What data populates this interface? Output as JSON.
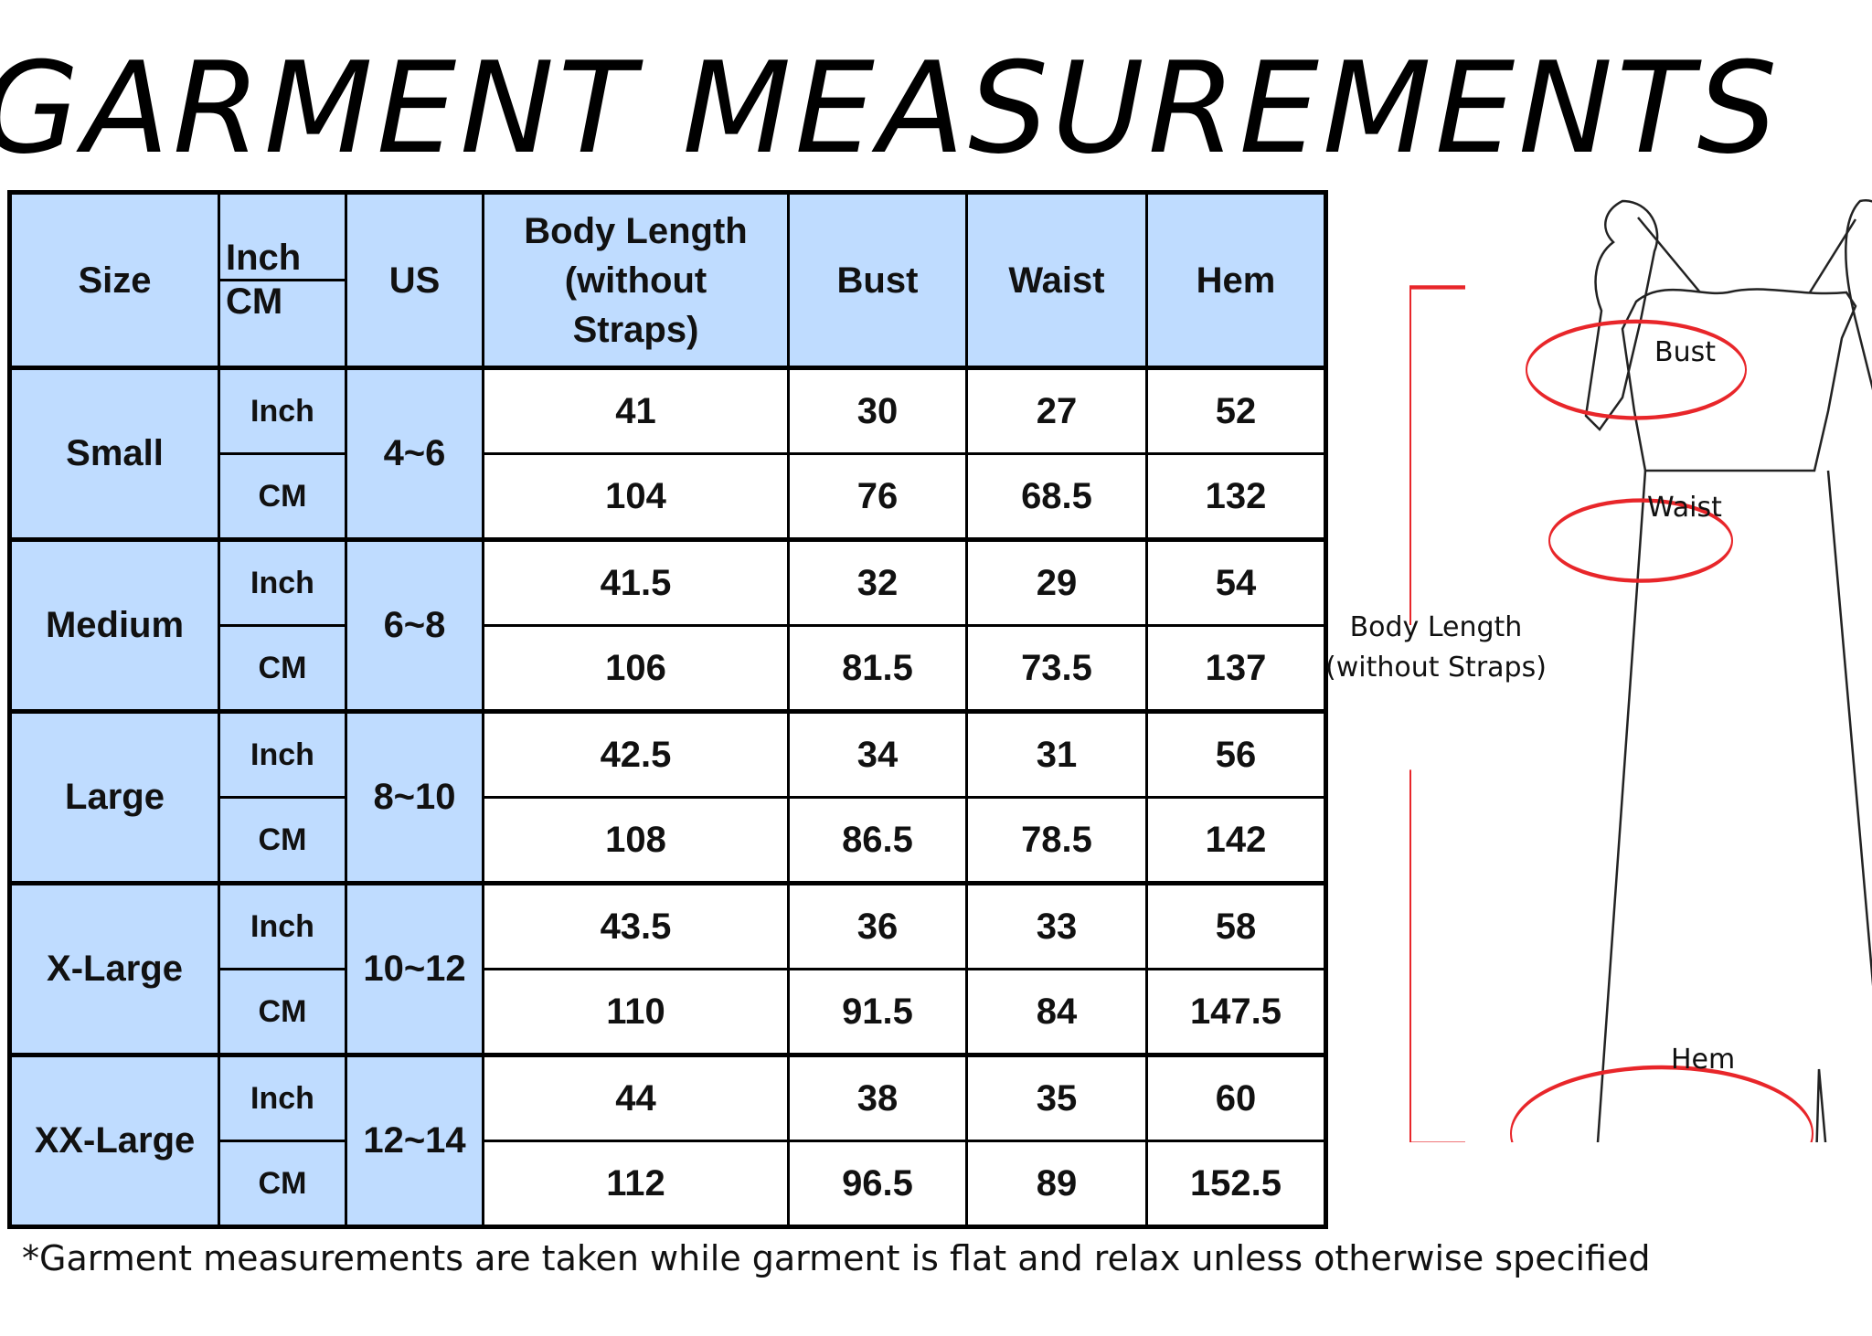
{
  "title": "GARMENT MEASUREMENTS",
  "table": {
    "headers": {
      "size": "Size",
      "unit_top": "Inch",
      "unit_bottom": "CM",
      "us": "US",
      "body_length": "Body Length (without Straps)",
      "bust": "Bust",
      "waist": "Waist",
      "hem": "Hem"
    },
    "rows": [
      {
        "size": "Small",
        "us": "4~6",
        "inch": {
          "unit": "Inch",
          "body_length": "41",
          "bust": "30",
          "waist": "27",
          "hem": "52"
        },
        "cm": {
          "unit": "CM",
          "body_length": "104",
          "bust": "76",
          "waist": "68.5",
          "hem": "132"
        }
      },
      {
        "size": "Medium",
        "us": "6~8",
        "inch": {
          "unit": "Inch",
          "body_length": "41.5",
          "bust": "32",
          "waist": "29",
          "hem": "54"
        },
        "cm": {
          "unit": "CM",
          "body_length": "106",
          "bust": "81.5",
          "waist": "73.5",
          "hem": "137"
        }
      },
      {
        "size": "Large",
        "us": "8~10",
        "inch": {
          "unit": "Inch",
          "body_length": "42.5",
          "bust": "34",
          "waist": "31",
          "hem": "56"
        },
        "cm": {
          "unit": "CM",
          "body_length": "108",
          "bust": "86.5",
          "waist": "78.5",
          "hem": "142"
        }
      },
      {
        "size": "X-Large",
        "us": "10~12",
        "inch": {
          "unit": "Inch",
          "body_length": "43.5",
          "bust": "36",
          "waist": "33",
          "hem": "58"
        },
        "cm": {
          "unit": "CM",
          "body_length": "110",
          "bust": "91.5",
          "waist": "84",
          "hem": "147.5"
        }
      },
      {
        "size": "XX-Large",
        "us": "12~14",
        "inch": {
          "unit": "Inch",
          "body_length": "44",
          "bust": "38",
          "waist": "35",
          "hem": "60"
        },
        "cm": {
          "unit": "CM",
          "body_length": "112",
          "bust": "96.5",
          "waist": "89",
          "hem": "152.5"
        }
      }
    ]
  },
  "diagram": {
    "bust_label": "Bust",
    "waist_label": "Waist",
    "hem_label": "Hem",
    "length_label_line1": "Body Length",
    "length_label_line2": "(without Straps)"
  },
  "colors": {
    "header_fill": "#bfdcff",
    "measure_line": "#e8262a"
  },
  "footnote": "*Garment measurements are taken while garment is flat and relax unless otherwise specified"
}
